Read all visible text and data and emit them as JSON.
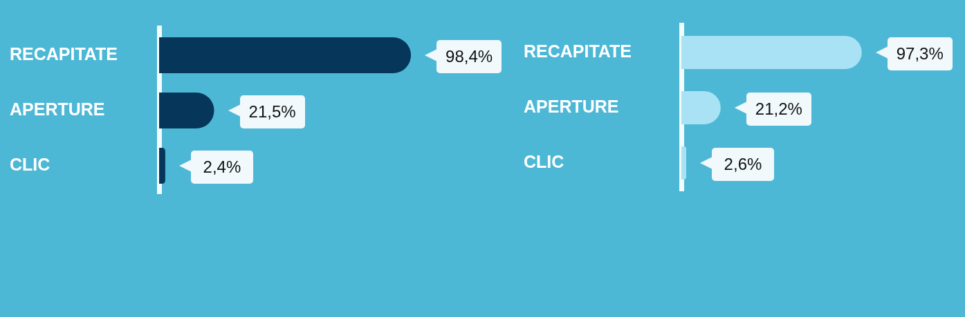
{
  "chart_data": [
    {
      "type": "bar",
      "orientation": "horizontal",
      "categories": [
        "RECAPITATE",
        "APERTURE",
        "CLIC"
      ],
      "values": [
        98.4,
        21.5,
        2.4
      ],
      "value_labels": [
        "98,4%",
        "21,5%",
        "2,4%"
      ],
      "color": "#06365a",
      "tick_labels": "y",
      "grid": false
    },
    {
      "type": "bar",
      "orientation": "horizontal",
      "categories": [
        "RECAPITATE",
        "APERTURE",
        "CLIC"
      ],
      "values": [
        97.3,
        21.2,
        2.6
      ],
      "value_labels": [
        "97,3%",
        "21,2%",
        "2,6%"
      ],
      "color": "#a8e2f4",
      "tick_labels": "y",
      "grid": false
    }
  ]
}
